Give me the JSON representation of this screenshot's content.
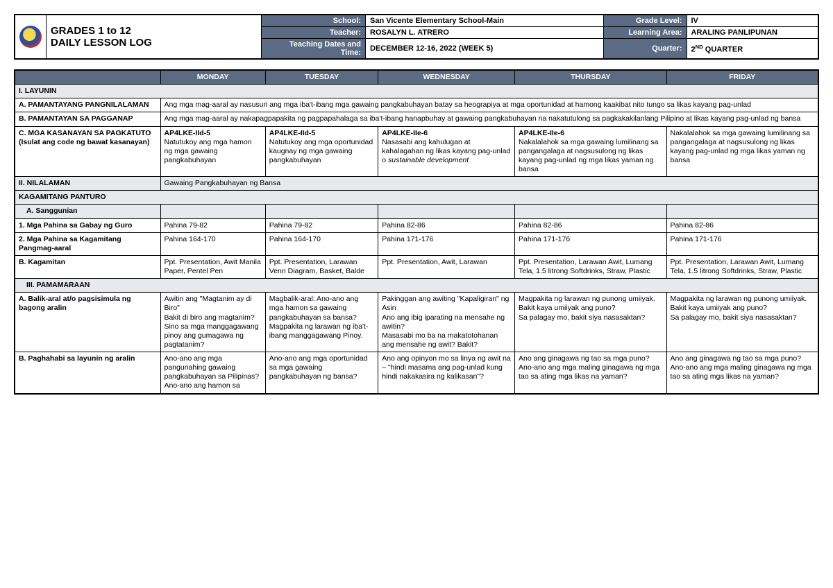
{
  "header": {
    "title_line1": "GRADES 1 to 12",
    "title_line2": "DAILY LESSON LOG",
    "labels": {
      "school": "School:",
      "teacher": "Teacher:",
      "dates": "Teaching Dates and Time:",
      "grade": "Grade Level:",
      "area": "Learning Area:",
      "quarter": "Quarter:"
    },
    "values": {
      "school": "San Vicente Elementary School-Main",
      "teacher": "ROSALYN L. ATRERO",
      "dates": "DECEMBER 12-16, 2022 (WEEK 5)",
      "grade": "IV",
      "area": "ARALING PANLIPUNAN",
      "quarter_pre": "2",
      "quarter_sup": "ND",
      "quarter_post": " QUARTER"
    }
  },
  "days": [
    "MONDAY",
    "TUESDAY",
    "WEDNESDAY",
    "THURSDAY",
    "FRIDAY"
  ],
  "sectionI": "I.   LAYUNIN",
  "rowA": {
    "label": "A. PAMANTAYANG PANGNILALAMAN",
    "text": "Ang mga mag-aaral ay nasusuri ang mga iba't-ibang mga gawaing pangkabuhayan batay sa heograpiya at mga oportunidad at hamong kaakibat nito tungo sa likas kayang pag-unlad"
  },
  "rowB": {
    "label": "B. PAMANTAYAN SA PAGGANAP",
    "text": "Ang mga mag-aaral ay nakapagpapakita ng pagpapahalaga sa iba't-ibang hanapbuhay at gawaing pangkabuhayan na nakatutulong sa pagkakakilanlang Pilipino at likas kayang pag-unlad ng bansa"
  },
  "rowC": {
    "label": "C. MGA KASANAYAN SA PAGKATUTO (Isulat ang code ng bawat kasanayan)",
    "mon": "AP4LKE-IId-5\nNatutukoy ang mga hamon ng mga gawaing pangkabuhayan",
    "tue": "AP4LKE-IId-5\nNatutukoy ang mga oportunidad kaugnay ng mga gawaing pangkabuhayan",
    "wed": "AP4LKE-IIe-6\nNasasabi ang kahulugan at kahalagahan ng likas kayang pag-unlad o sustainable development",
    "thu": "AP4LKE-IIe-6\nNakalalahok sa mga gawaing lumilinang sa pangangalaga at nagsusulong ng likas kayang pag-unlad ng mga likas yaman ng bansa",
    "fri": "Nakalalahok sa mga gawaing lumilinang sa pangangalaga at nagsusulong ng likas kayang pag-unlad ng mga likas yaman ng bansa"
  },
  "sectionII": "II.  NILALAMAN",
  "nilalaman_text": "Gawaing Pangkabuhayan ng Bansa",
  "kagamitang": "KAGAMITANG PANTURO",
  "sanggunian": "A.   Sanggunian",
  "row1": {
    "label": "1. Mga Pahina sa Gabay ng Guro",
    "mon": "Pahina 79-82",
    "tue": "Pahina 79-82",
    "wed": "Pahina 82-86",
    "thu": "Pahina 82-86",
    "fri": "Pahina 82-86"
  },
  "row2": {
    "label": "2. Mga Pahina sa Kagamitang Pangmag-aaral",
    "mon": "Pahina 164-170",
    "tue": "Pahina 164-170",
    "wed": "Pahina 171-176",
    "thu": "Pahina 171-176",
    "fri": "Pahina 171-176"
  },
  "rowKag": {
    "label": "B.  Kagamitan",
    "mon": "Ppt. Presentation, Awit Manila Paper, Pentel Pen",
    "tue": "Ppt. Presentation, Larawan Venn Diagram, Basket, Balde",
    "wed": "Ppt. Presentation, Awit, Larawan",
    "thu": "Ppt. Presentation, Larawan Awit, Lumang Tela, 1.5 litrong Softdrinks, Straw, Plastic",
    "fri": "Ppt. Presentation, Larawan Awit, Lumang Tela, 1.5 litrong Softdrinks, Straw, Plastic"
  },
  "sectionIII": "III.       PAMAMARAAN",
  "rowBalik": {
    "label": "A. Balik-aral at/o pagsisimula ng bagong aralin",
    "mon": "Awitin ang \"Magtanim ay di Biro\"\nBakit di biro ang magtanim?\nSino sa mga manggagawang pinoy ang gumagawa ng pagtatanim?",
    "tue": "Magbalik-aral: Ano-ano ang mga hamon sa gawaing pangkabuhayan sa bansa?\nMagpakita ng larawan ng iba't-ibang manggagawang Pinoy.",
    "wed": "Pakinggan ang awiting \"Kapaligiran\" ng Asin\nAno ang ibig iparating na mensahe ng awitin?\nMasasabi mo ba na makatotohanan ang mensahe ng awit? Bakit?",
    "thu": "Magpakita ng larawan ng punong umiiyak.\nBakit kaya umiiyak ang puno?\nSa palagay mo, bakit siya nasasaktan?",
    "fri": "Magpakita ng larawan ng punong umiiyak.\nBakit kaya umiiyak ang puno?\nSa palagay mo, bakit siya nasasaktan?"
  },
  "rowPag": {
    "label": "B.  Paghahabi sa layunin ng aralin",
    "mon": "Ano-ano ang mga pangunahing gawaing pangkabuhayan sa Pilipinas?\nAno-ano ang hamon sa",
    "tue": "Ano-ano ang mga oportunidad sa mga gawaing pangkabuhayan ng bansa?",
    "wed": "Ano ang opinyon mo sa linya ng awit na – \"hindi masama ang pag-unlad kung hindi nakakasira ng kalikasan\"?",
    "thu": "Ano ang ginagawa ng tao sa mga puno?\nAno-ano ang mga maling ginagawa ng mga tao sa ating mga likas na yaman?",
    "fri": "Ano ang ginagawa ng tao sa mga puno?\nAno-ano ang mga maling ginagawa ng mga tao sa ating mga likas na yaman?"
  }
}
